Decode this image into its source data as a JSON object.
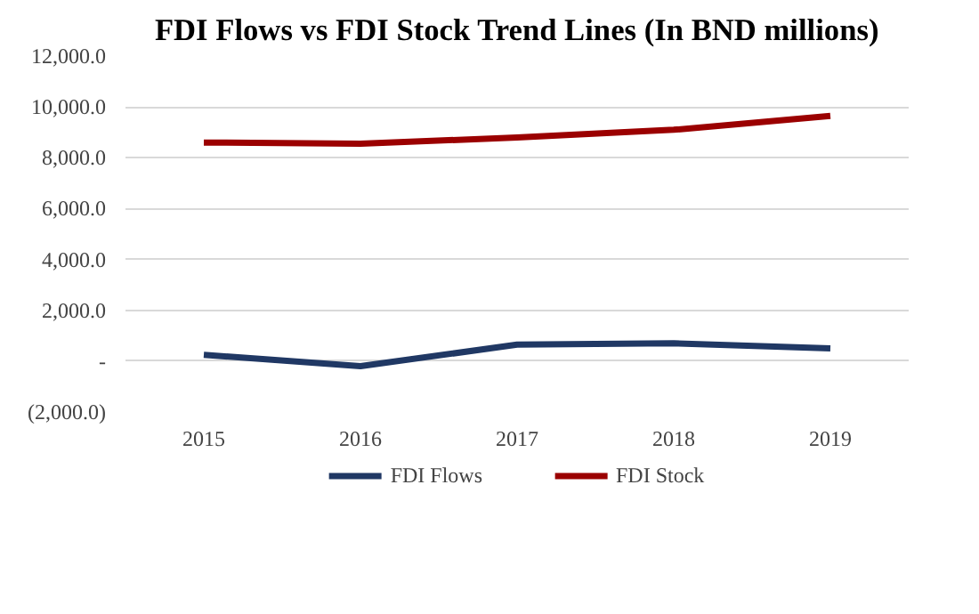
{
  "chart_data": {
    "type": "line",
    "title": "FDI Flows vs FDI Stock Trend Lines (In BND millions)",
    "categories": [
      "2015",
      "2016",
      "2017",
      "2018",
      "2019"
    ],
    "series": [
      {
        "name": "FDI Flows",
        "color": "#203864",
        "values": [
          250,
          -200,
          650,
          700,
          500
        ]
      },
      {
        "name": "FDI Stock",
        "color": "#9b0000",
        "values": [
          8600,
          8550,
          8800,
          9100,
          9650
        ]
      }
    ],
    "ylim": [
      -2000,
      12000
    ],
    "yticks": [
      {
        "value": -2000,
        "label": "(2,000.0)"
      },
      {
        "value": 0,
        "label": "-"
      },
      {
        "value": 2000,
        "label": "2,000.0"
      },
      {
        "value": 4000,
        "label": "4,000.0"
      },
      {
        "value": 6000,
        "label": "6,000.0"
      },
      {
        "value": 8000,
        "label": "8,000.0"
      },
      {
        "value": 10000,
        "label": "10,000.0"
      },
      {
        "value": 12000,
        "label": "12,000.0"
      }
    ],
    "grid": "y",
    "legend": "bottom",
    "line_style": "solid",
    "marker": "none"
  }
}
